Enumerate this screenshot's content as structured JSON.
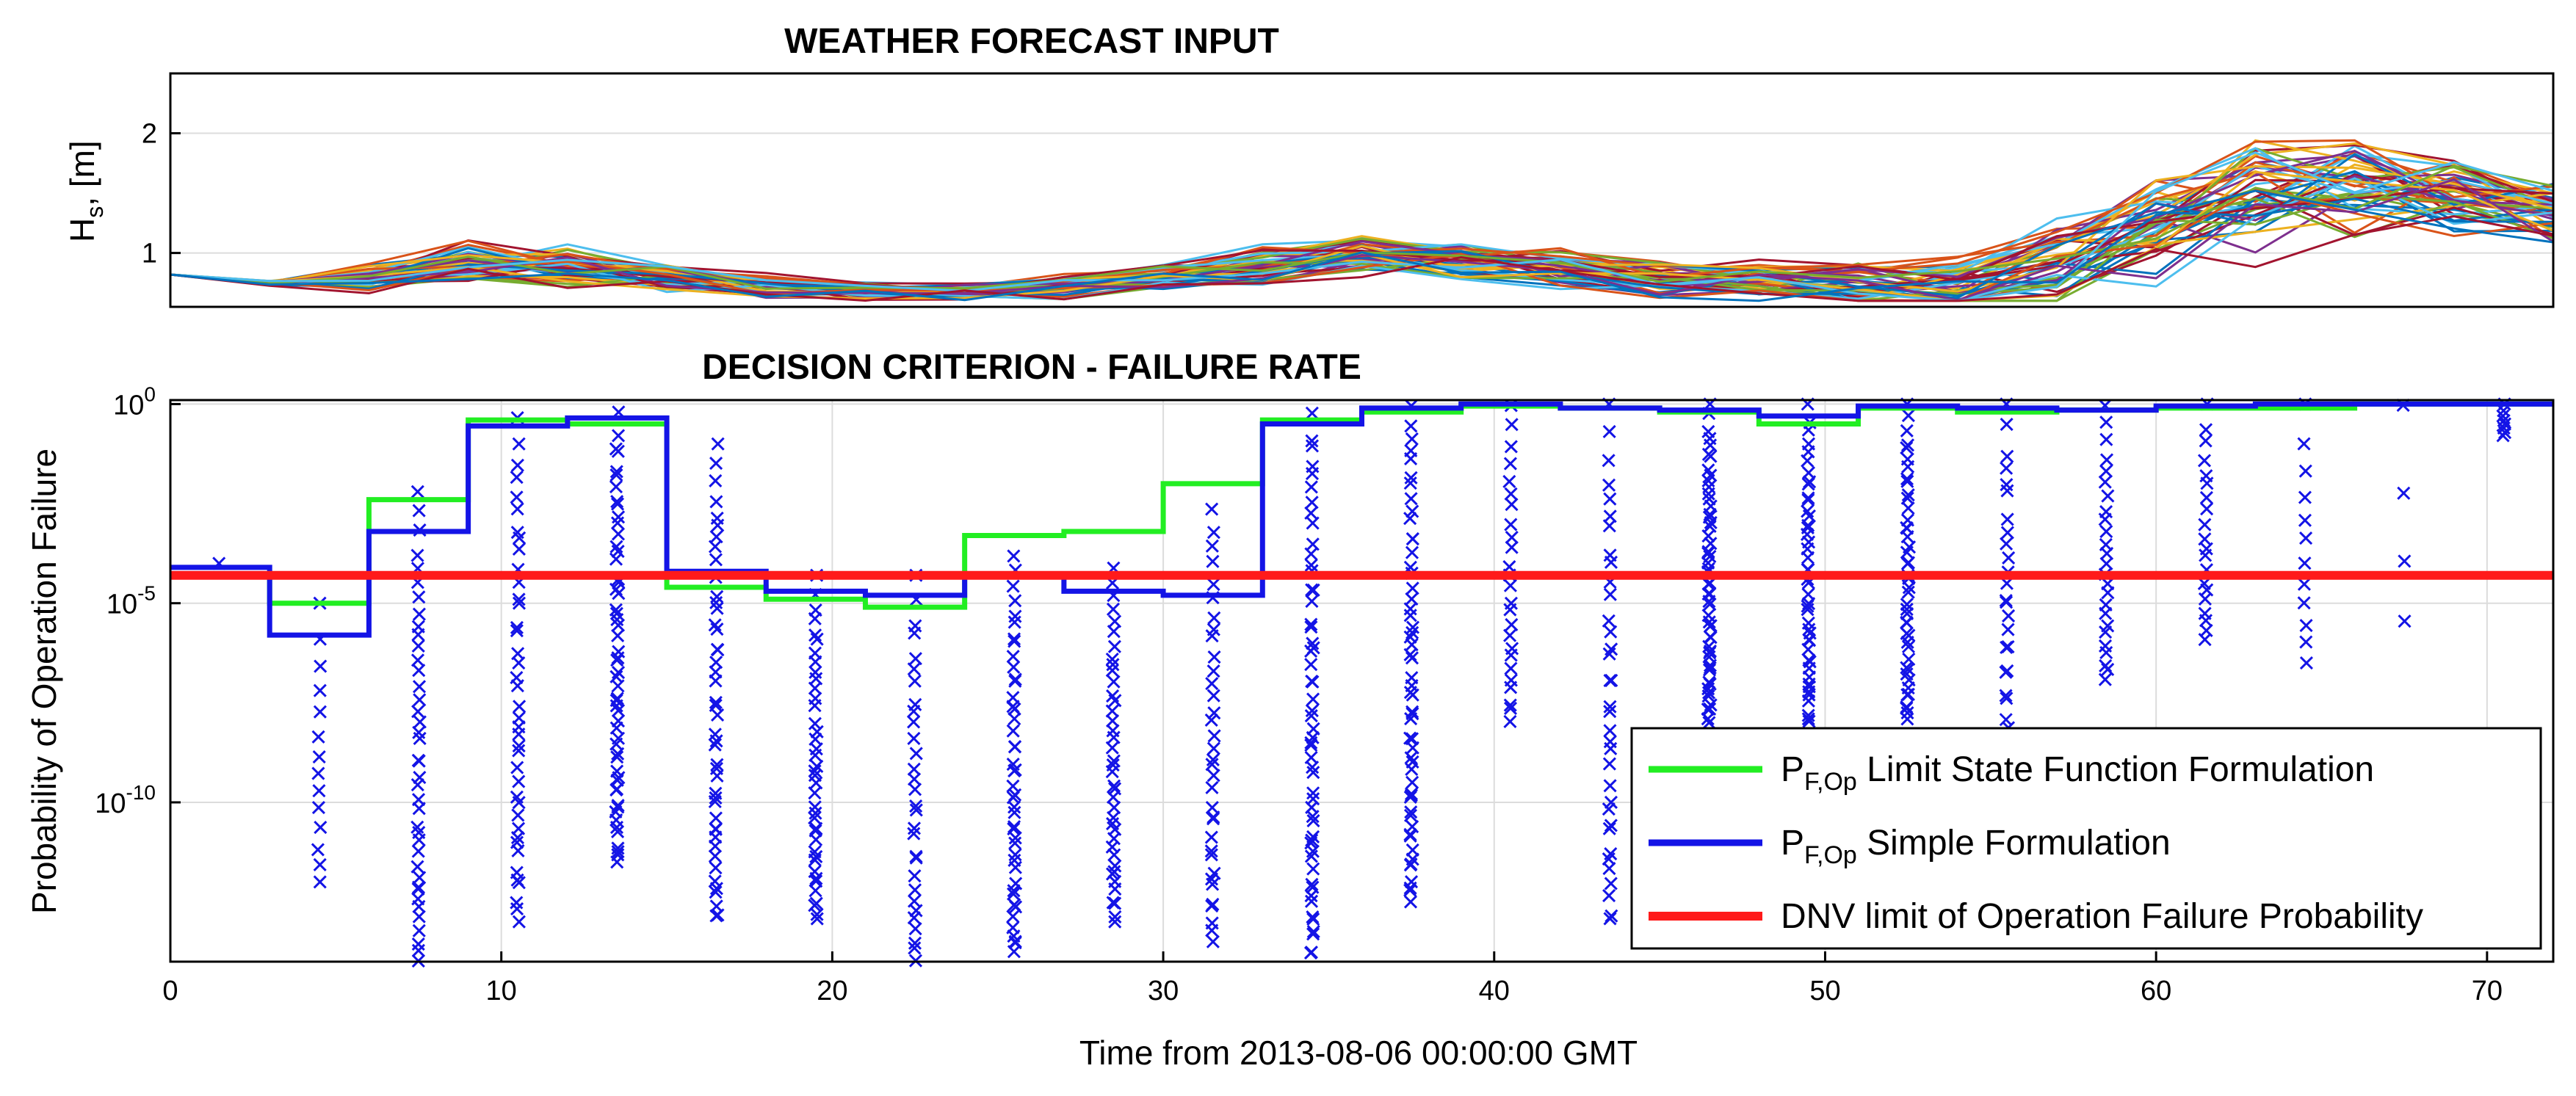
{
  "chart_data": [
    {
      "type": "line",
      "title": "WEATHER FORECAST INPUT",
      "ylabel": "H_s, [m]",
      "ylabel_main": "H",
      "ylabel_sub": "s",
      "ylabel_rest": ", [m]",
      "xlim": [
        0,
        72
      ],
      "ylim": [
        0.55,
        2.5
      ],
      "yticks": [
        1,
        2
      ],
      "ytick_labels": [
        "1",
        "2"
      ],
      "grid": true,
      "x": [
        0,
        3,
        6,
        9,
        12,
        15,
        18,
        21,
        24,
        27,
        30,
        33,
        36,
        39,
        42,
        45,
        48,
        51,
        54,
        57,
        60,
        63,
        66,
        69,
        72
      ],
      "ensemble_members": 50,
      "series_note": "50 ensemble forecast members of significant wave height (m), one coloured line each"
    },
    {
      "type": "scatter",
      "title": "DECISION CRITERION - FAILURE RATE",
      "xlabel": "Time from 2013-08-06 00:00:00 GMT",
      "ylabel": "Probability of Operation Failure",
      "xlim": [
        0,
        72
      ],
      "xticks": [
        0,
        10,
        20,
        30,
        40,
        50,
        60,
        70
      ],
      "xtick_labels": [
        "0",
        "10",
        "20",
        "30",
        "40",
        "50",
        "60",
        "70"
      ],
      "ylim_log10": [
        -14,
        0.1
      ],
      "yticks": [
        {
          "base": "10",
          "exp": "0",
          "log": 0
        },
        {
          "base": "10",
          "exp": "-5",
          "log": -5
        },
        {
          "base": "10",
          "exp": "-10",
          "log": -10
        }
      ],
      "grid": true,
      "legend_position": "bottom-right",
      "legend": [
        {
          "key": "green",
          "main": "P",
          "sub": "F,Op",
          "text": " Limit State Function Formulation",
          "color": "#22ee22"
        },
        {
          "key": "blue",
          "main": "P",
          "sub": "F,Op",
          "text": " Simple Formulation",
          "color": "#1414e6"
        },
        {
          "key": "red",
          "main": "",
          "sub": "",
          "text": "DNV limit of Operation Failure Probability",
          "color": "#ff1a1a"
        }
      ],
      "step_edges_hours": [
        0,
        3,
        6,
        9,
        12,
        15,
        18,
        21,
        24,
        27,
        30,
        33,
        36,
        39,
        42,
        45,
        48,
        51,
        54,
        57,
        60,
        63,
        66,
        69,
        72
      ],
      "green_step_log10": [
        -4.3,
        -5.0,
        -2.4,
        -0.4,
        -0.5,
        -4.6,
        -4.9,
        -5.1,
        -3.3,
        -3.2,
        -2.0,
        -0.4,
        -0.2,
        -0.05,
        -0.1,
        -0.2,
        -0.5,
        -0.1,
        -0.2,
        -0.15,
        -0.1,
        -0.1,
        0,
        0
      ],
      "blue_step_log10": [
        -4.1,
        -5.8,
        -3.2,
        -0.55,
        -0.35,
        -4.2,
        -4.7,
        -4.8,
        -4.3,
        -4.7,
        -4.8,
        -0.5,
        -0.1,
        0,
        -0.1,
        -0.15,
        -0.3,
        -0.05,
        -0.1,
        -0.15,
        -0.05,
        0,
        0,
        0
      ],
      "dnv_limit_log10": -4.3,
      "scatter_columns_hours": [
        1.5,
        4.5,
        7.5,
        10.5,
        13.5,
        16.5,
        19.5,
        22.5,
        25.5,
        28.5,
        31.5,
        34.5,
        37.5,
        40.5,
        43.5,
        46.5,
        49.5,
        52.5,
        55.5,
        58.5,
        61.5,
        64.5,
        67.5,
        70.5
      ],
      "scatter_min_log10": [
        -4,
        -12,
        -14,
        -13,
        -11.5,
        -13,
        -13,
        -14,
        -13.8,
        -13,
        -13.5,
        -13.8,
        -12.5,
        -8,
        -13,
        -8,
        -8,
        -8,
        -13.5,
        -7,
        -6,
        -6.5,
        -5.5,
        -0.8
      ],
      "scatter_max_log10": [
        -4,
        -5,
        -2.2,
        -0.2,
        -0.2,
        -1,
        -4.3,
        -4.3,
        -3.8,
        -4,
        -2.5,
        -0.2,
        0,
        0,
        0,
        0,
        0,
        0,
        0,
        0,
        0,
        0,
        0,
        0
      ],
      "scatter_count": [
        1,
        14,
        40,
        40,
        55,
        45,
        40,
        30,
        45,
        40,
        35,
        55,
        55,
        25,
        35,
        55,
        45,
        45,
        45,
        25,
        20,
        12,
        4,
        8
      ],
      "marker_symbol": "×"
    }
  ]
}
